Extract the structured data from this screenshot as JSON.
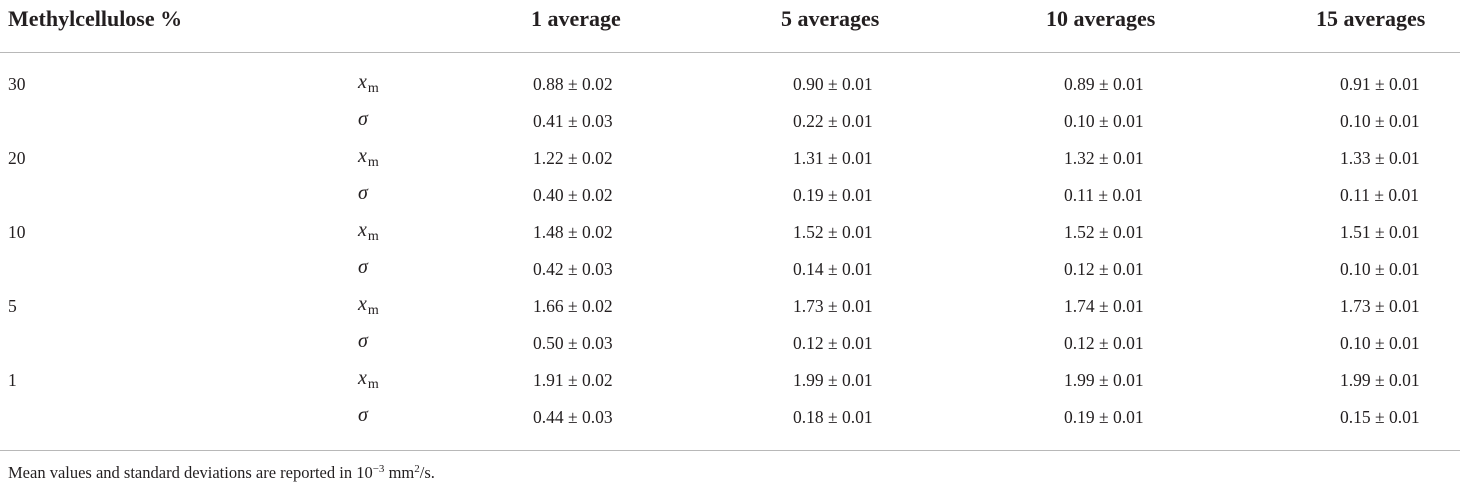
{
  "table": {
    "headers": [
      "Methylcellulose %",
      "1 average",
      "5 averages",
      "10 averages",
      "15 averages"
    ],
    "rows": [
      {
        "group": "30",
        "param": "x",
        "sub": "m",
        "values": [
          "0.88 ± 0.02",
          "0.90 ± 0.01",
          "0.89 ± 0.01",
          "0.91 ± 0.01"
        ]
      },
      {
        "group": "",
        "param": "σ",
        "sub": "",
        "values": [
          "0.41 ± 0.03",
          "0.22 ± 0.01",
          "0.10 ± 0.01",
          "0.10 ± 0.01"
        ]
      },
      {
        "group": "20",
        "param": "x",
        "sub": "m",
        "values": [
          "1.22 ± 0.02",
          "1.31 ± 0.01",
          "1.32 ± 0.01",
          "1.33 ± 0.01"
        ]
      },
      {
        "group": "",
        "param": "σ",
        "sub": "",
        "values": [
          "0.40 ± 0.02",
          "0.19 ± 0.01",
          "0.11 ± 0.01",
          "0.11 ± 0.01"
        ]
      },
      {
        "group": "10",
        "param": "x",
        "sub": "m",
        "values": [
          "1.48 ± 0.02",
          "1.52 ± 0.01",
          "1.52 ± 0.01",
          "1.51 ± 0.01"
        ]
      },
      {
        "group": "",
        "param": "σ",
        "sub": "",
        "values": [
          "0.42 ± 0.03",
          "0.14 ± 0.01",
          "0.12 ± 0.01",
          "0.10 ± 0.01"
        ]
      },
      {
        "group": "5",
        "param": "x",
        "sub": "m",
        "values": [
          "1.66 ± 0.02",
          "1.73 ± 0.01",
          "1.74 ± 0.01",
          "1.73 ± 0.01"
        ]
      },
      {
        "group": "",
        "param": "σ",
        "sub": "",
        "values": [
          "0.50 ± 0.03",
          "0.12 ± 0.01",
          "0.12 ± 0.01",
          "0.10 ± 0.01"
        ]
      },
      {
        "group": "1",
        "param": "x",
        "sub": "m",
        "values": [
          "1.91 ± 0.02",
          "1.99 ± 0.01",
          "1.99 ± 0.01",
          "1.99 ± 0.01"
        ]
      },
      {
        "group": "",
        "param": "σ",
        "sub": "",
        "values": [
          "0.44 ± 0.03",
          "0.18 ± 0.01",
          "0.19 ± 0.01",
          "0.15 ± 0.01"
        ]
      }
    ]
  },
  "footnote": {
    "text_before": "Mean values and standard deviations are reported in 10",
    "exponent": "−3",
    "unit_prefix": " mm",
    "unit_exponent": "2",
    "text_after": "/s."
  }
}
